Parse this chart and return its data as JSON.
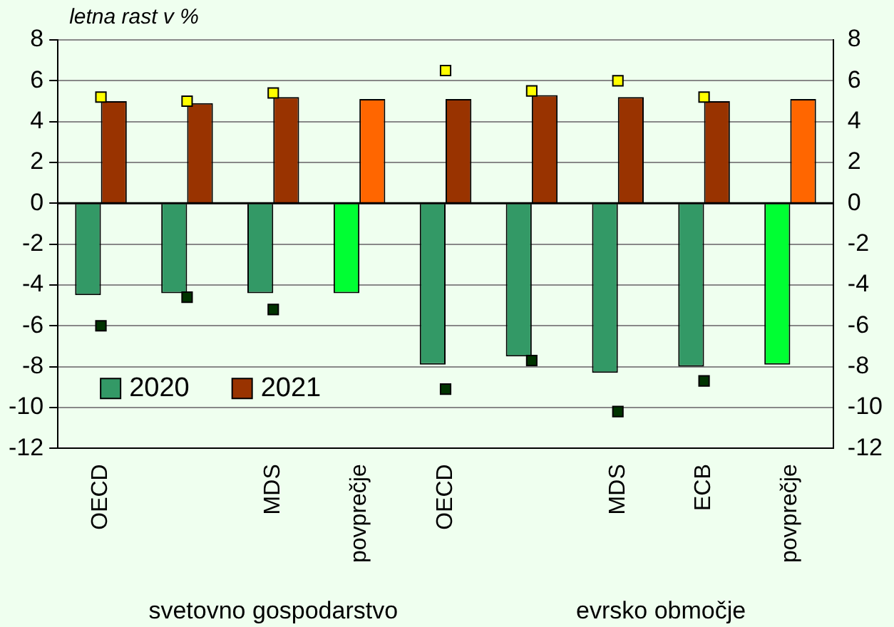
{
  "chart_data": {
    "type": "bar",
    "ylabel": "letna rast v %",
    "categories": [
      "OECD",
      null,
      "MDS",
      "povprečje",
      "OECD",
      null,
      "MDS",
      "ECB",
      "povprečje"
    ],
    "series": [
      {
        "name": "2020",
        "color": "#339966",
        "colors": [
          "#339966",
          "#339966",
          "#339966",
          "#00ff33",
          "#339966",
          "#339966",
          "#339966",
          "#339966",
          "#00ff33"
        ],
        "values": [
          -4.5,
          -4.4,
          -4.4,
          -4.4,
          -7.9,
          -7.5,
          -8.3,
          -8.0,
          -7.9
        ]
      },
      {
        "name": "2021",
        "color": "#993300",
        "colors": [
          "#993300",
          "#993300",
          "#993300",
          "#ff6600",
          "#993300",
          "#993300",
          "#993300",
          "#993300",
          "#ff6600"
        ],
        "values": [
          5.0,
          4.9,
          5.2,
          5.1,
          5.1,
          5.3,
          5.2,
          5.0,
          5.1
        ]
      },
      {
        "type": "scatter",
        "marker": "square",
        "color": "#ffff00",
        "values": [
          5.2,
          5.0,
          5.4,
          null,
          6.5,
          5.5,
          6.0,
          5.2,
          null
        ]
      },
      {
        "type": "scatter",
        "marker": "square",
        "color": "#003300",
        "values": [
          -6.0,
          -4.6,
          -5.2,
          null,
          -9.1,
          -7.7,
          -10.2,
          -8.7,
          null
        ]
      }
    ],
    "ylim": [
      -12,
      8
    ],
    "yticks": [
      -12,
      -10,
      -8,
      -6,
      -4,
      -2,
      0,
      2,
      4,
      6,
      8
    ],
    "y2lim": [
      -12,
      8
    ],
    "y2ticks": [
      -12,
      -10,
      -8,
      -6,
      -4,
      -2,
      0,
      2,
      4,
      6,
      8
    ],
    "grid": "y",
    "legend": "bottom left",
    "annotations": [
      "svetovno gospodarstvo",
      "evrsko območje"
    ]
  }
}
